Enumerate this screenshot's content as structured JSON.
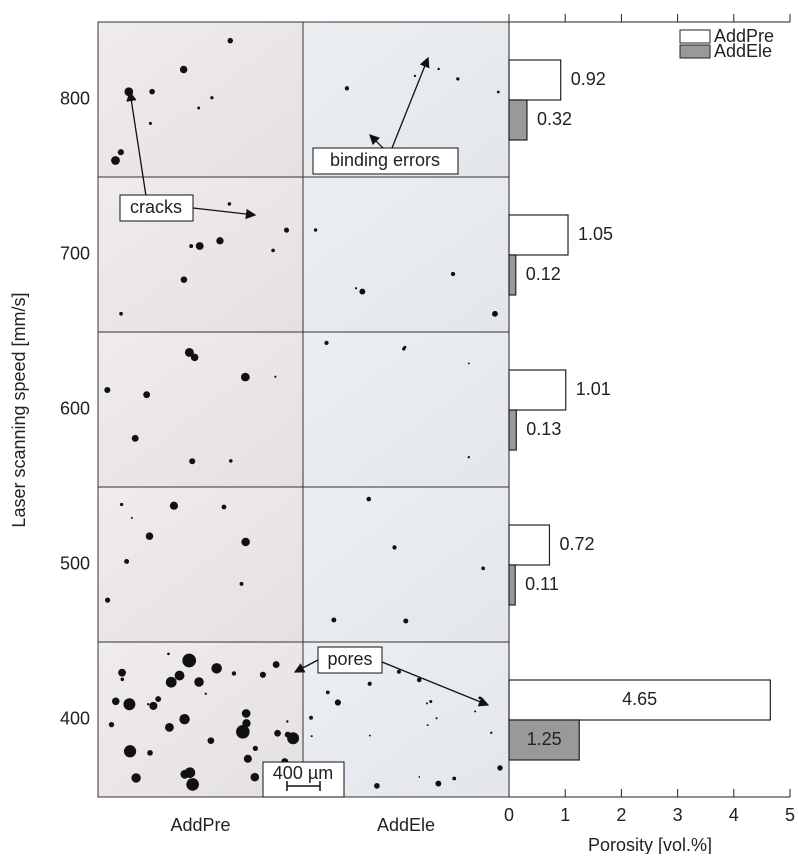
{
  "chart_data": {
    "type": "bar",
    "orientation": "horizontal",
    "ylabel": "Laser scanning speed [mm/s]",
    "xlabel": "Porosity [vol.%]",
    "categories": [
      "800",
      "700",
      "600",
      "500",
      "400"
    ],
    "image_columns": [
      "AddPre",
      "AddEle"
    ],
    "series": [
      {
        "name": "AddPre",
        "color": "#ffffff",
        "values": [
          0.92,
          1.05,
          1.01,
          0.72,
          4.65
        ]
      },
      {
        "name": "AddEle",
        "color": "#999999",
        "values": [
          0.32,
          0.12,
          0.13,
          0.11,
          1.25
        ]
      }
    ],
    "xlim": [
      0,
      5
    ],
    "xticks": [
      0,
      1,
      2,
      3,
      4,
      5
    ],
    "legend": "top-right",
    "annotations": [
      "cracks",
      "binding errors",
      "pores",
      "400 µm"
    ]
  }
}
